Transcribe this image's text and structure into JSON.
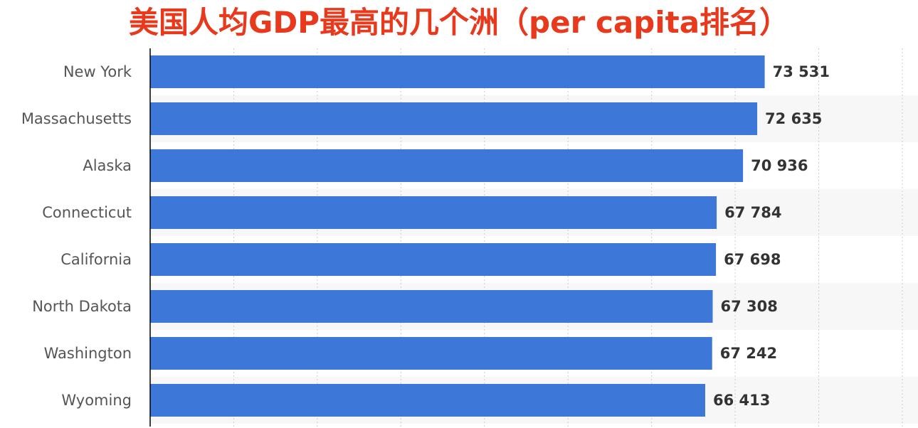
{
  "colors": {
    "title": "#e8391d",
    "bar": "#3d78d8",
    "row_band": "#f7f7f7",
    "axis": "#000000",
    "grid": "#cccccc"
  },
  "chart_data": {
    "type": "bar",
    "orientation": "horizontal",
    "title": "美国人均GDP最高的几个洲（per capita排名）",
    "categories": [
      "New York",
      "Massachusetts",
      "Alaska",
      "Connecticut",
      "California",
      "North Dakota",
      "Washington",
      "Wyoming"
    ],
    "values": [
      73531,
      72635,
      70936,
      67784,
      67698,
      67308,
      67242,
      66413
    ],
    "value_labels": [
      "73 531",
      "72 635",
      "70 936",
      "67 784",
      "67 698",
      "67 308",
      "67 242",
      "66 413"
    ],
    "xlim": [
      0,
      90000
    ],
    "grid": true,
    "legend": false
  }
}
